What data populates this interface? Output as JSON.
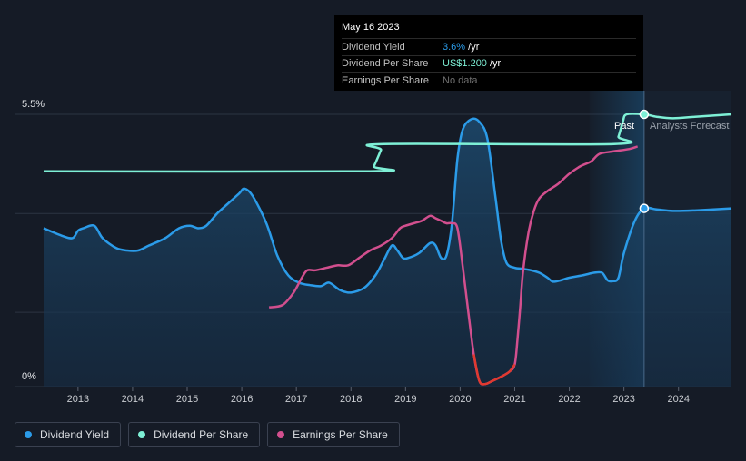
{
  "tooltip": {
    "date": "May 16 2023",
    "rows": [
      {
        "label": "Dividend Yield",
        "value": "3.6%",
        "unit": " /yr",
        "color": "#2b9be8"
      },
      {
        "label": "Dividend Per Share",
        "value": "US$1.200",
        "unit": " /yr",
        "color": "#7ef0d6"
      },
      {
        "label": "Earnings Per Share",
        "value": "No data",
        "unit": "",
        "color": "#707070"
      }
    ]
  },
  "legend": [
    {
      "label": "Dividend Yield",
      "color": "#2b9be8"
    },
    {
      "label": "Dividend Per Share",
      "color": "#7ef0d6"
    },
    {
      "label": "Earnings Per Share",
      "color": "#d24f8e"
    }
  ],
  "chart_data": {
    "type": "line",
    "title": "",
    "y_tick_labels": [
      "5.5%",
      "0%"
    ],
    "ylim": [
      0,
      5.5
    ],
    "xlim": [
      2012.37,
      2024.97
    ],
    "x_tick_labels": [
      "2013",
      "2014",
      "2015",
      "2016",
      "2017",
      "2018",
      "2019",
      "2020",
      "2021",
      "2022",
      "2023",
      "2024"
    ],
    "x_ticks": [
      2013,
      2014,
      2015,
      2016,
      2017,
      2018,
      2019,
      2020,
      2021,
      2022,
      2023,
      2024
    ],
    "past_label": "Past",
    "forecast_label": "Analysts Forecast",
    "today": 2023.37,
    "forecast_shade_start": 2022.37,
    "marker_values": {
      "dividend_yield": 3.6,
      "dividend_per_share": 5.5
    },
    "series": [
      {
        "name": "Dividend Yield",
        "color": "#2b9be8",
        "x": [
          2012.37,
          2012.7,
          2012.9,
          2013.0,
          2013.1,
          2013.3,
          2013.45,
          2013.7,
          2013.9,
          2014.1,
          2014.3,
          2014.6,
          2014.85,
          2015.05,
          2015.2,
          2015.35,
          2015.55,
          2015.75,
          2015.95,
          2016.05,
          2016.2,
          2016.45,
          2016.65,
          2016.85,
          2017.05,
          2017.25,
          2017.45,
          2017.6,
          2017.8,
          2018.0,
          2018.25,
          2018.45,
          2018.6,
          2018.75,
          2018.85,
          2018.95,
          2019.05,
          2019.25,
          2019.45,
          2019.55,
          2019.65,
          2019.75,
          2019.85,
          2019.95,
          2020.05,
          2020.2,
          2020.35,
          2020.5,
          2020.65,
          2020.75,
          2020.85,
          2021.0,
          2021.15,
          2021.3,
          2021.45,
          2021.6,
          2021.7,
          2021.85,
          2022.0,
          2022.25,
          2022.45,
          2022.6,
          2022.7,
          2022.8,
          2022.9,
          2023.0,
          2023.2,
          2023.37,
          2023.6,
          2023.9,
          2024.3,
          2024.97
        ],
        "values": [
          3.2,
          3.05,
          3.0,
          3.15,
          3.2,
          3.25,
          3.0,
          2.8,
          2.75,
          2.75,
          2.85,
          3.0,
          3.2,
          3.25,
          3.2,
          3.25,
          3.5,
          3.7,
          3.9,
          4.0,
          3.85,
          3.3,
          2.65,
          2.25,
          2.1,
          2.05,
          2.03,
          2.1,
          1.95,
          1.9,
          2.0,
          2.25,
          2.55,
          2.85,
          2.75,
          2.6,
          2.6,
          2.7,
          2.9,
          2.85,
          2.6,
          2.65,
          3.3,
          4.6,
          5.2,
          5.4,
          5.35,
          5.0,
          3.8,
          2.95,
          2.5,
          2.4,
          2.38,
          2.35,
          2.3,
          2.2,
          2.12,
          2.15,
          2.2,
          2.25,
          2.3,
          2.3,
          2.15,
          2.13,
          2.2,
          2.7,
          3.35,
          3.6,
          3.58,
          3.55,
          3.56,
          3.6
        ]
      },
      {
        "name": "Dividend Per Share",
        "color": "#7ef0d6",
        "x": [
          2012.37,
          2018.35,
          2018.42,
          2018.55,
          2018.6,
          2022.82,
          2022.9,
          2022.98,
          2023.05,
          2023.37,
          2023.6,
          2023.9,
          2024.3,
          2024.97
        ],
        "values": [
          4.35,
          4.35,
          4.45,
          4.78,
          4.9,
          4.9,
          5.05,
          5.35,
          5.5,
          5.5,
          5.45,
          5.42,
          5.45,
          5.5
        ]
      },
      {
        "name": "Earnings Per Share",
        "color": "#d24f8e",
        "x": [
          2016.5,
          2016.75,
          2016.95,
          2017.1,
          2017.2,
          2017.35,
          2017.55,
          2017.75,
          2017.95,
          2018.15,
          2018.35,
          2018.55,
          2018.75,
          2018.9,
          2019.0,
          2019.15,
          2019.3,
          2019.45,
          2019.55,
          2019.65,
          2019.75,
          2019.85,
          2019.95,
          2020.05,
          2020.15,
          2020.25,
          2020.35,
          2020.45,
          2020.6,
          2020.75,
          2020.9,
          2021.0,
          2021.05,
          2021.1,
          2021.15,
          2021.25,
          2021.35,
          2021.45,
          2021.6,
          2021.8,
          2022.0,
          2022.2,
          2022.4,
          2022.55,
          2022.8,
          2023.1,
          2023.25
        ],
        "values": [
          1.6,
          1.65,
          1.9,
          2.2,
          2.35,
          2.35,
          2.4,
          2.45,
          2.45,
          2.6,
          2.75,
          2.85,
          3.0,
          3.2,
          3.25,
          3.3,
          3.35,
          3.45,
          3.4,
          3.35,
          3.3,
          3.3,
          3.2,
          2.4,
          1.5,
          0.65,
          0.12,
          0.05,
          0.12,
          0.2,
          0.3,
          0.45,
          0.95,
          1.6,
          2.3,
          3.1,
          3.55,
          3.8,
          3.95,
          4.1,
          4.3,
          4.45,
          4.55,
          4.7,
          4.75,
          4.8,
          4.85
        ]
      }
    ]
  }
}
